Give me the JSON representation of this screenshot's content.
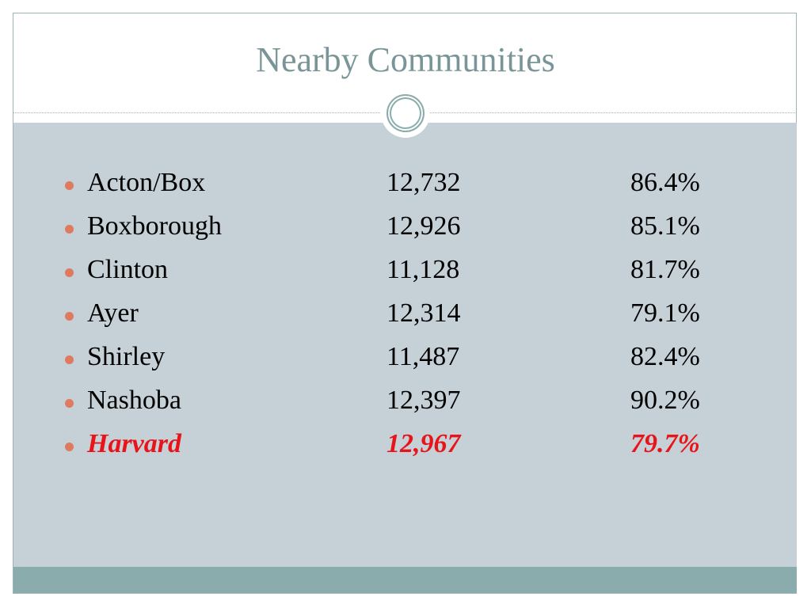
{
  "header": {
    "title": "Nearby Communities"
  },
  "table": {
    "rows": [
      [
        "Acton/Box",
        "12,732",
        "86.4%"
      ],
      [
        "Boxborough",
        "12,926",
        "85.1%"
      ],
      [
        "Clinton",
        "11,128",
        "81.7%"
      ],
      [
        "Ayer",
        "12,314",
        "79.1%"
      ],
      [
        "Shirley",
        "11,487",
        "82.4%"
      ],
      [
        "Nashoba",
        "12,397",
        "90.2%"
      ],
      [
        "Harvard",
        "12,967",
        "79.7%"
      ]
    ]
  }
}
